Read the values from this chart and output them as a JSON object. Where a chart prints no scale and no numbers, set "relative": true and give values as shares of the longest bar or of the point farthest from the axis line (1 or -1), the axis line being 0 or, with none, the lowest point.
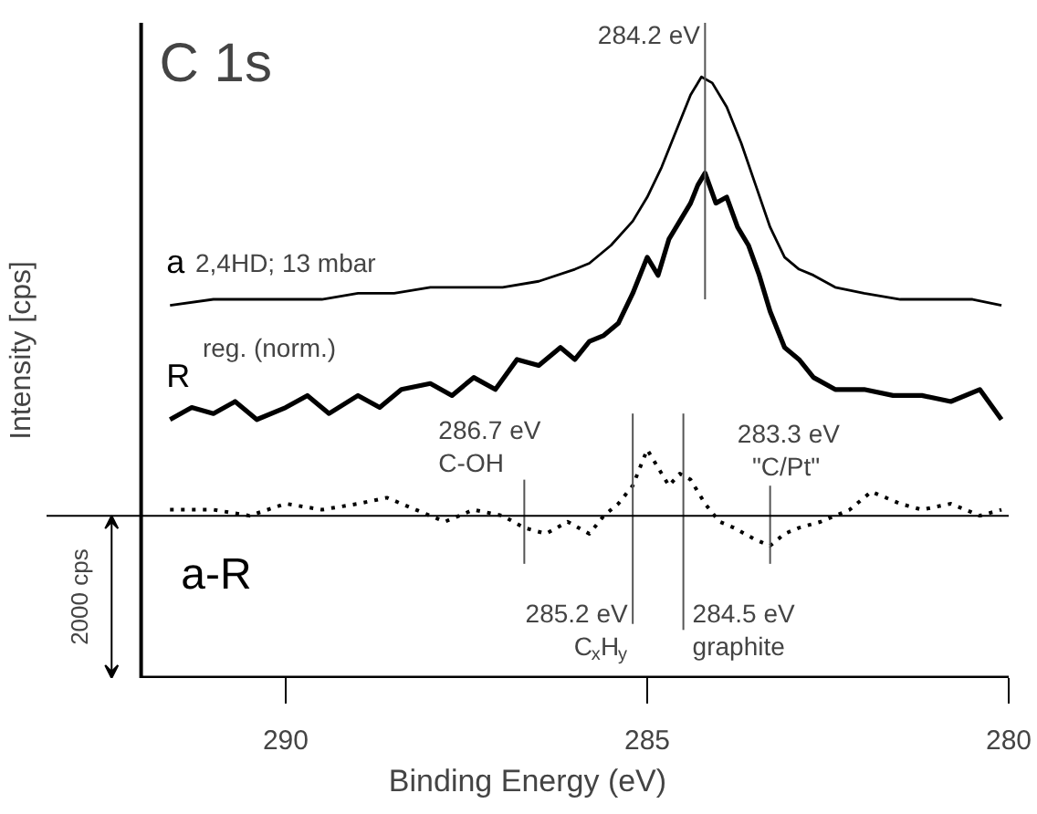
{
  "chart_data": {
    "type": "line",
    "title": "C 1s",
    "xlabel": "Binding Energy (eV)",
    "ylabel": "Intensity [cps]",
    "relative": true,
    "xlim": [
      292,
      280
    ],
    "xticks": [
      290,
      285,
      280
    ],
    "grid": false,
    "series": [
      {
        "name": "a",
        "color": "#000000",
        "line_style": "solid",
        "x": [
          291.6,
          291.0,
          290.5,
          290.0,
          289.5,
          289.0,
          288.5,
          288.0,
          287.5,
          287.0,
          286.5,
          286.0,
          285.8,
          285.5,
          285.2,
          285.0,
          284.8,
          284.6,
          284.4,
          284.25,
          284.1,
          283.9,
          283.7,
          283.5,
          283.3,
          283.1,
          282.9,
          282.7,
          282.4,
          282.0,
          281.5,
          281.0,
          280.5,
          280.1
        ],
        "values": [
          0.62,
          0.63,
          0.63,
          0.63,
          0.63,
          0.64,
          0.64,
          0.65,
          0.65,
          0.65,
          0.66,
          0.68,
          0.69,
          0.72,
          0.76,
          0.8,
          0.85,
          0.91,
          0.97,
          1.0,
          0.99,
          0.95,
          0.89,
          0.82,
          0.75,
          0.7,
          0.68,
          0.67,
          0.65,
          0.64,
          0.63,
          0.63,
          0.63,
          0.62
        ]
      },
      {
        "name": "R",
        "color": "#000000",
        "line_style": "solid",
        "x": [
          291.6,
          291.3,
          291.0,
          290.7,
          290.4,
          290.0,
          289.7,
          289.4,
          289.0,
          288.7,
          288.4,
          288.0,
          287.7,
          287.4,
          287.1,
          286.8,
          286.5,
          286.2,
          286.0,
          285.8,
          285.6,
          285.4,
          285.2,
          285.0,
          284.85,
          284.7,
          284.55,
          284.4,
          284.3,
          284.2,
          284.05,
          283.9,
          283.75,
          283.6,
          283.45,
          283.3,
          283.1,
          282.9,
          282.7,
          282.4,
          282.0,
          281.6,
          281.2,
          280.8,
          280.4,
          280.1
        ],
        "values": [
          0.43,
          0.45,
          0.44,
          0.46,
          0.43,
          0.45,
          0.47,
          0.44,
          0.47,
          0.45,
          0.48,
          0.49,
          0.47,
          0.5,
          0.48,
          0.53,
          0.52,
          0.55,
          0.53,
          0.56,
          0.57,
          0.59,
          0.64,
          0.7,
          0.67,
          0.73,
          0.76,
          0.79,
          0.82,
          0.84,
          0.79,
          0.8,
          0.75,
          0.72,
          0.67,
          0.61,
          0.55,
          0.53,
          0.5,
          0.48,
          0.48,
          0.47,
          0.47,
          0.46,
          0.48,
          0.43
        ]
      },
      {
        "name": "a-R",
        "color": "#000000",
        "line_style": "dotted",
        "x": [
          291.6,
          291.0,
          290.5,
          290.0,
          289.5,
          289.0,
          288.6,
          288.2,
          287.8,
          287.4,
          287.0,
          286.7,
          286.4,
          286.1,
          285.8,
          285.6,
          285.4,
          285.2,
          285.0,
          284.85,
          284.7,
          284.55,
          284.4,
          284.2,
          284.0,
          283.8,
          283.5,
          283.3,
          283.1,
          282.9,
          282.6,
          282.2,
          281.9,
          281.5,
          281.2,
          280.8,
          280.4,
          280.1
        ],
        "values": [
          0.28,
          0.28,
          0.27,
          0.29,
          0.28,
          0.29,
          0.3,
          0.28,
          0.26,
          0.28,
          0.27,
          0.25,
          0.24,
          0.26,
          0.24,
          0.27,
          0.29,
          0.32,
          0.38,
          0.35,
          0.32,
          0.34,
          0.33,
          0.29,
          0.26,
          0.25,
          0.23,
          0.22,
          0.24,
          0.25,
          0.26,
          0.28,
          0.31,
          0.29,
          0.28,
          0.29,
          0.27,
          0.28
        ]
      }
    ],
    "ref_lines": [
      {
        "axis": "x",
        "value": 284.2,
        "label": "284.2 eV"
      },
      {
        "axis": "x",
        "value": 286.7,
        "label": "286.7 eV\nC-OH"
      },
      {
        "axis": "x",
        "value": 285.2,
        "label": "285.2 eV\nC$_{x}$H$_{y}$"
      },
      {
        "axis": "x",
        "value": 284.5,
        "label": "284.5 eV\ngraphite"
      },
      {
        "axis": "x",
        "value": 283.3,
        "label": "283.3 eV\n\"C/Pt\""
      },
      {
        "axis": "y",
        "value": 0.27,
        "label": "2000 cps"
      }
    ],
    "annotations": [
      "2,4HD; 13 mbar",
      "reg. (norm.)"
    ]
  }
}
